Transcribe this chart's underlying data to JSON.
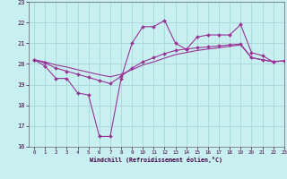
{
  "xlabel": "Windchill (Refroidissement éolien,°C)",
  "background_color": "#c8f0f0",
  "grid_color": "#a8d8d8",
  "line_color": "#993399",
  "xlim": [
    -0.5,
    23
  ],
  "ylim": [
    16,
    23
  ],
  "xticks": [
    0,
    1,
    2,
    3,
    4,
    5,
    6,
    7,
    8,
    9,
    10,
    11,
    12,
    13,
    14,
    15,
    16,
    17,
    18,
    19,
    20,
    21,
    22,
    23
  ],
  "yticks": [
    16,
    17,
    18,
    19,
    20,
    21,
    22,
    23
  ],
  "series1_x": [
    0,
    1,
    2,
    3,
    4,
    5,
    6,
    7,
    8,
    9,
    10,
    11,
    12,
    13,
    14,
    15,
    16,
    17,
    18,
    19,
    20,
    21,
    22
  ],
  "series1_y": [
    20.2,
    19.9,
    19.3,
    19.3,
    18.6,
    18.5,
    16.5,
    16.5,
    19.3,
    21.0,
    21.8,
    21.8,
    22.1,
    21.0,
    20.7,
    21.3,
    21.4,
    21.4,
    21.4,
    21.9,
    20.55,
    20.4,
    20.1
  ],
  "series2_x": [
    0,
    1,
    2,
    3,
    4,
    5,
    6,
    7,
    8,
    9,
    10,
    11,
    12,
    13,
    14,
    15,
    16,
    17,
    18,
    19,
    20,
    21,
    22,
    23
  ],
  "series2_y": [
    20.2,
    20.05,
    19.8,
    19.65,
    19.5,
    19.35,
    19.2,
    19.05,
    19.4,
    19.8,
    20.1,
    20.3,
    20.5,
    20.65,
    20.72,
    20.78,
    20.82,
    20.87,
    20.92,
    20.96,
    20.3,
    20.2,
    20.1,
    20.15
  ],
  "series3_x": [
    0,
    1,
    2,
    3,
    4,
    5,
    6,
    7,
    8,
    9,
    10,
    11,
    12,
    13,
    14,
    15,
    16,
    17,
    18,
    19,
    20,
    21,
    22,
    23
  ],
  "series3_y": [
    20.2,
    20.1,
    19.95,
    19.85,
    19.72,
    19.6,
    19.48,
    19.38,
    19.5,
    19.72,
    19.95,
    20.1,
    20.28,
    20.45,
    20.55,
    20.65,
    20.72,
    20.78,
    20.85,
    20.92,
    20.3,
    20.2,
    20.12,
    20.15
  ]
}
